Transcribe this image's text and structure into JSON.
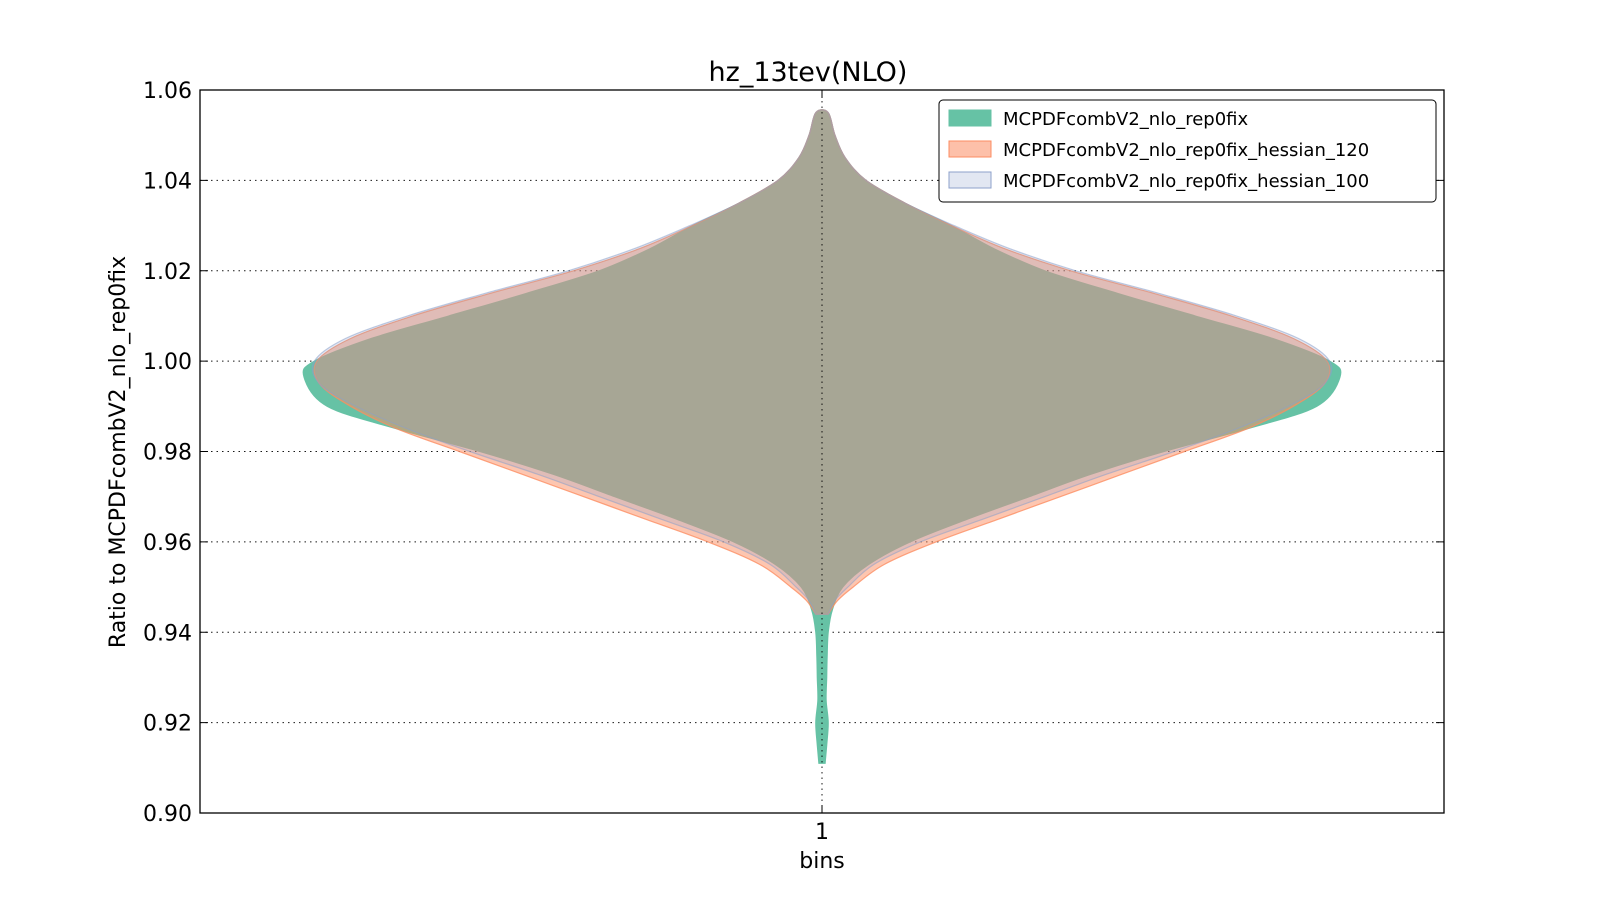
{
  "chart_data": {
    "type": "violin",
    "title": "hz_13tev(NLO)",
    "xlabel": "bins",
    "ylabel": "Ratio to MCPDFcombV2_nlo_rep0fix",
    "categories": [
      "1"
    ],
    "ylim": [
      0.9,
      1.06
    ],
    "yticks": [
      "0.90",
      "0.92",
      "0.94",
      "0.96",
      "0.98",
      "1.00",
      "1.02",
      "1.04",
      "1.06"
    ],
    "grid": true,
    "legend_position": "top-right",
    "series": [
      {
        "name": "MCPDFcombV2_nlo_rep0fix",
        "color": "#66c2a5",
        "opacity": 1.0,
        "range": [
          0.911,
          1.055
        ],
        "density": [
          [
            0.911,
            0.006
          ],
          [
            0.915,
            0.009
          ],
          [
            0.92,
            0.012
          ],
          [
            0.925,
            0.008
          ],
          [
            0.93,
            0.009
          ],
          [
            0.935,
            0.01
          ],
          [
            0.94,
            0.012
          ],
          [
            0.945,
            0.02
          ],
          [
            0.95,
            0.04
          ],
          [
            0.955,
            0.09
          ],
          [
            0.96,
            0.17
          ],
          [
            0.965,
            0.28
          ],
          [
            0.97,
            0.4
          ],
          [
            0.975,
            0.52
          ],
          [
            0.98,
            0.66
          ],
          [
            0.985,
            0.82
          ],
          [
            0.99,
            0.955
          ],
          [
            0.9965,
            1.0
          ],
          [
            1.0,
            0.98
          ],
          [
            1.005,
            0.87
          ],
          [
            1.01,
            0.72
          ],
          [
            1.015,
            0.57
          ],
          [
            1.02,
            0.43
          ],
          [
            1.025,
            0.33
          ],
          [
            1.03,
            0.25
          ],
          [
            1.035,
            0.16
          ],
          [
            1.04,
            0.085
          ],
          [
            1.045,
            0.045
          ],
          [
            1.05,
            0.025
          ],
          [
            1.055,
            0.012
          ]
        ]
      },
      {
        "name": "MCPDFcombV2_nlo_rep0fix_hessian_120",
        "color": "#fc8d62",
        "opacity": 0.5,
        "range": [
          0.944,
          1.055
        ],
        "density": [
          [
            0.944,
            0.012
          ],
          [
            0.947,
            0.03
          ],
          [
            0.95,
            0.06
          ],
          [
            0.955,
            0.12
          ],
          [
            0.96,
            0.22
          ],
          [
            0.965,
            0.34
          ],
          [
            0.97,
            0.46
          ],
          [
            0.975,
            0.58
          ],
          [
            0.98,
            0.7
          ],
          [
            0.985,
            0.82
          ],
          [
            0.99,
            0.91
          ],
          [
            0.995,
            0.97
          ],
          [
            1.0,
            0.975
          ],
          [
            1.005,
            0.91
          ],
          [
            1.01,
            0.79
          ],
          [
            1.015,
            0.64
          ],
          [
            1.02,
            0.48
          ],
          [
            1.025,
            0.35
          ],
          [
            1.03,
            0.25
          ],
          [
            1.035,
            0.16
          ],
          [
            1.04,
            0.085
          ],
          [
            1.045,
            0.045
          ],
          [
            1.05,
            0.025
          ],
          [
            1.055,
            0.012
          ]
        ]
      },
      {
        "name": "MCPDFcombV2_nlo_rep0fix_hessian_100",
        "color": "#8da0cb",
        "opacity": 0.25,
        "range": [
          0.944,
          1.055
        ],
        "density": [
          [
            0.944,
            0.012
          ],
          [
            0.947,
            0.025
          ],
          [
            0.95,
            0.05
          ],
          [
            0.955,
            0.1
          ],
          [
            0.96,
            0.19
          ],
          [
            0.965,
            0.31
          ],
          [
            0.97,
            0.43
          ],
          [
            0.975,
            0.55
          ],
          [
            0.98,
            0.68
          ],
          [
            0.985,
            0.8
          ],
          [
            0.99,
            0.9
          ],
          [
            0.995,
            0.97
          ],
          [
            1.0,
            0.98
          ],
          [
            1.005,
            0.92
          ],
          [
            1.01,
            0.8
          ],
          [
            1.015,
            0.65
          ],
          [
            1.02,
            0.49
          ],
          [
            1.025,
            0.36
          ],
          [
            1.03,
            0.255
          ],
          [
            1.035,
            0.16
          ],
          [
            1.04,
            0.085
          ],
          [
            1.045,
            0.045
          ],
          [
            1.05,
            0.025
          ],
          [
            1.055,
            0.012
          ]
        ]
      }
    ]
  }
}
